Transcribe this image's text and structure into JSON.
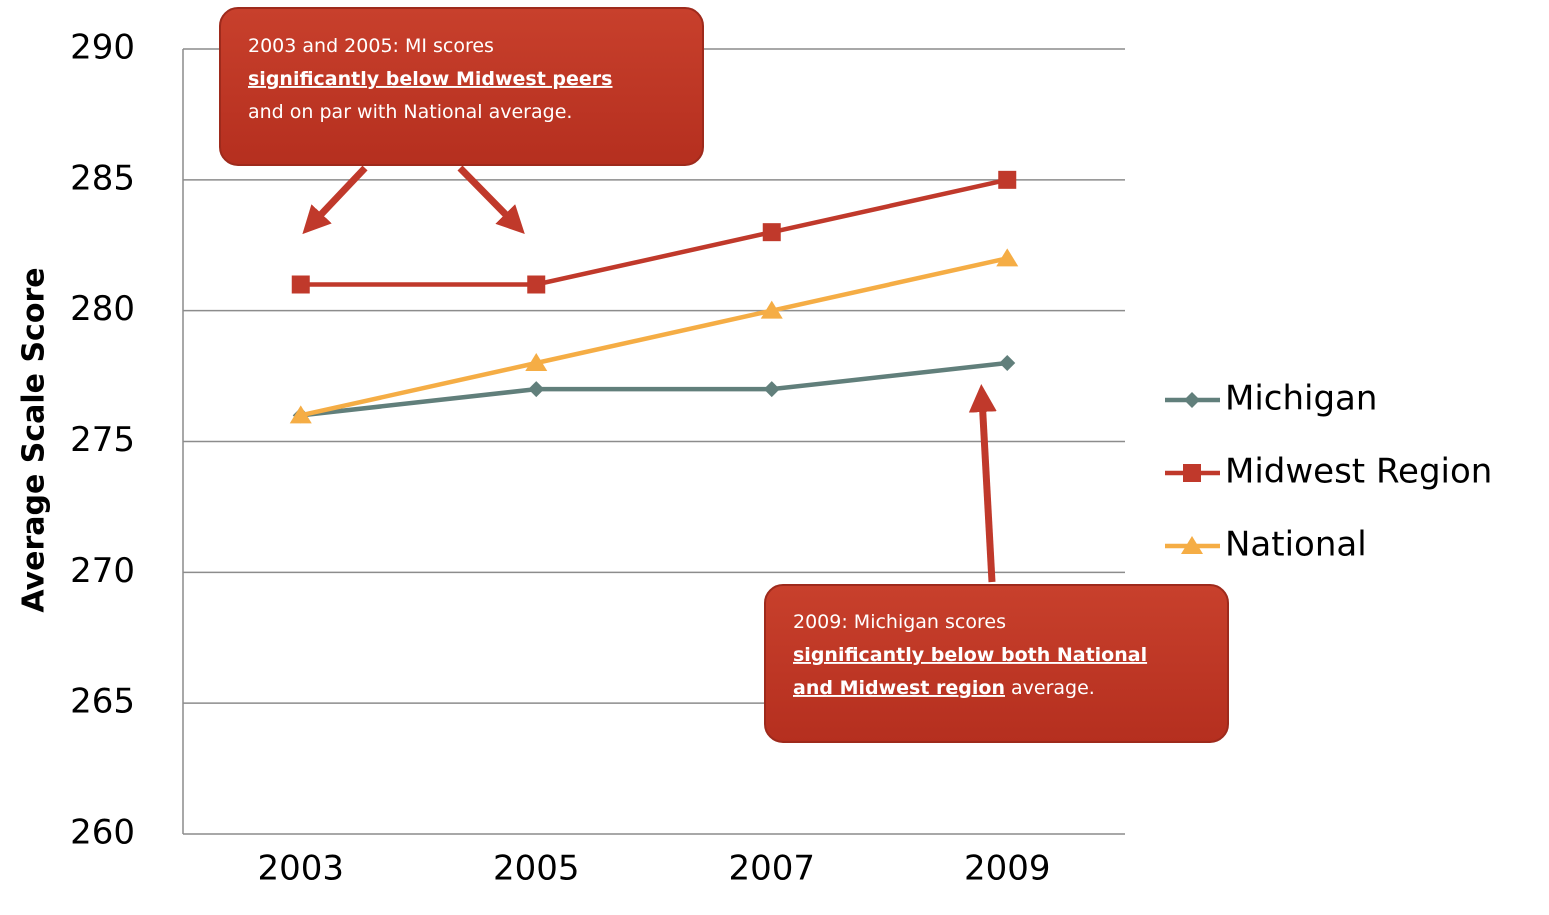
{
  "chart_data": {
    "type": "line",
    "y_label": "Average Scale Score",
    "categories": [
      "2003",
      "2005",
      "2007",
      "2009"
    ],
    "series": [
      {
        "name": "Michigan",
        "color": "#617f7b",
        "marker": "diamond",
        "values": [
          276,
          277,
          277,
          278
        ]
      },
      {
        "name": "Midwest Region",
        "color": "#c0392b",
        "marker": "square",
        "values": [
          281,
          281,
          283,
          285
        ]
      },
      {
        "name": "National",
        "color": "#f5ad45",
        "marker": "triangle",
        "values": [
          276,
          278,
          280,
          282
        ]
      }
    ],
    "ylim": [
      260,
      290
    ],
    "yticks": [
      260,
      265,
      270,
      275,
      280,
      285,
      290
    ],
    "grid": true,
    "legend": "right",
    "annotations": [
      {
        "lines": [
          [
            {
              "text": "2003 and 2005:  MI scores",
              "bold": false
            }
          ],
          [
            {
              "text": "significantly below Midwest peers",
              "bold": true
            }
          ],
          [
            {
              "text": "and on par with National average.",
              "bold": false
            }
          ]
        ]
      },
      {
        "lines": [
          [
            {
              "text": "2009:  Michigan scores",
              "bold": false
            }
          ],
          [
            {
              "text": "significantly below both National",
              "bold": true
            }
          ],
          [
            {
              "text": "and Midwest region",
              "bold": true
            },
            {
              "text": " average.",
              "bold": false
            }
          ]
        ]
      }
    ]
  }
}
